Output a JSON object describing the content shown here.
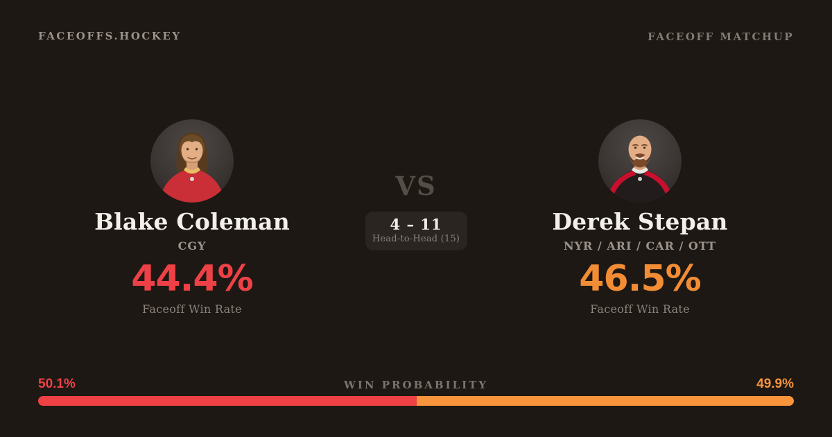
{
  "page": {
    "background": "#1d1814"
  },
  "header": {
    "brand": "FACEOFFS.HOCKEY",
    "label": "FACEOFF MATCHUP"
  },
  "matchup": {
    "vs_label": "VS",
    "head_to_head": {
      "score": "4 – 11",
      "label": "Head-to-Head (15)"
    }
  },
  "players": {
    "left": {
      "name": "Blake Coleman",
      "teams": "CGY",
      "win_rate": "44.4%",
      "win_rate_label": "Faceoff Win Rate",
      "color": "#ee4147",
      "avatar_alt": "blake-coleman-headshot"
    },
    "right": {
      "name": "Derek Stepan",
      "teams": "NYR / ARI / CAR / OTT",
      "win_rate": "46.5%",
      "win_rate_label": "Faceoff Win Rate",
      "color": "#f28d35",
      "avatar_alt": "derek-stepan-headshot"
    }
  },
  "win_probability": {
    "label": "WIN PROBABILITY",
    "left_pct_text": "50.1%",
    "right_pct_text": "49.9%",
    "left_value": 50.1,
    "right_value": 49.9,
    "left_color": "#ee4145",
    "right_color": "#f8943c"
  }
}
